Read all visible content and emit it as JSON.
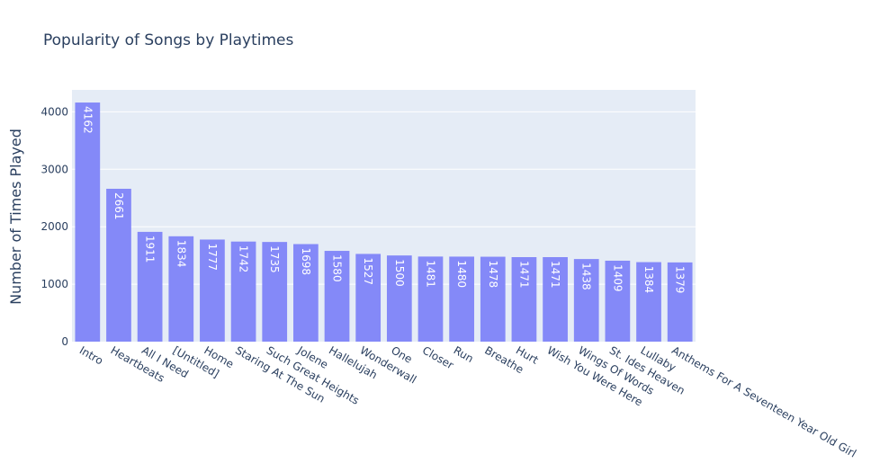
{
  "chart_data": {
    "type": "bar",
    "title": "Popularity of Songs by Playtimes",
    "xlabel": "",
    "ylabel": "Number of Times Played",
    "categories": [
      "Intro",
      "Heartbeats",
      "All I Need",
      "[Untitled]",
      "Home",
      "Staring At The Sun",
      "Such Great Heights",
      "Jolene",
      "Hallelujah",
      "Wonderwall",
      "One",
      "Closer",
      "Run",
      "Breathe",
      "Hurt",
      "Wish You Were Here",
      "Wings Of Words",
      "St. Ides Heaven",
      "Lullaby",
      "Anthems For A Seventeen Year Old Girl"
    ],
    "values": [
      4162,
      2661,
      1911,
      1834,
      1777,
      1742,
      1735,
      1698,
      1580,
      1527,
      1500,
      1481,
      1480,
      1478,
      1471,
      1471,
      1438,
      1409,
      1384,
      1379
    ],
    "value_labels": [
      "4162",
      "2661",
      "1911",
      "1834",
      "1777",
      "1742",
      "1735",
      "1698",
      "1580",
      "1527",
      "1500",
      "1481",
      "1480",
      "1478",
      "1471",
      "1471",
      "1438",
      "1409",
      "1384",
      "1379"
    ],
    "ylim": [
      0,
      4382
    ],
    "yticks": [
      0,
      1000,
      2000,
      3000,
      4000
    ],
    "ytick_labels": [
      "0",
      "1000",
      "2000",
      "3000",
      "4000"
    ],
    "grid": true,
    "colors": {
      "bar": "#8489f8",
      "plot_bg": "#e5ecf6",
      "grid": "#ffffff",
      "text": "#2a3f5f",
      "bar_label": "#ffffff"
    }
  }
}
